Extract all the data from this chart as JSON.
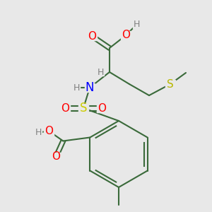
{
  "background_color": "#e8e8e8",
  "figsize": [
    3.0,
    3.0
  ],
  "dpi": 100,
  "colors": {
    "C": "#5a8a5a",
    "O": "#ff0000",
    "N": "#0000ff",
    "S_thio": "#b8b800",
    "S_sulf": "#cccc00",
    "H": "#808080",
    "bond": "#3a6a3a",
    "bg": "#e8e8e8"
  }
}
